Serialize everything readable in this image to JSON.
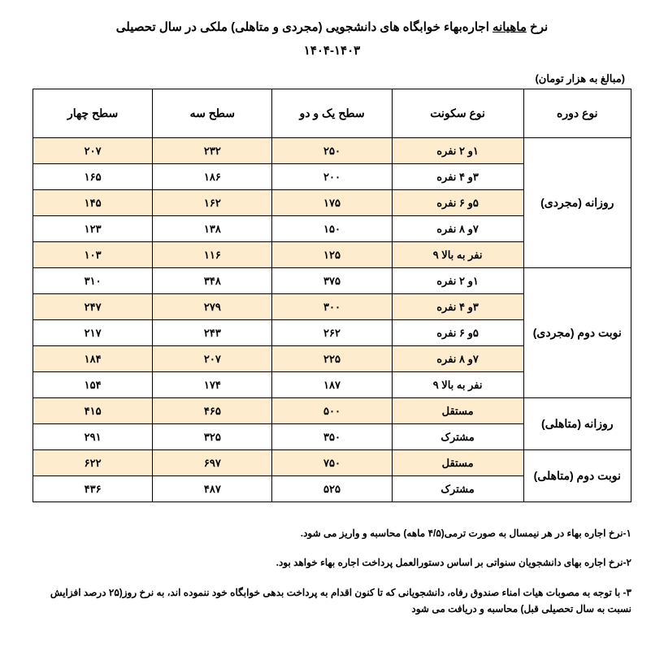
{
  "title_line1_pre": "نرخ ",
  "title_line1_u": "ماهیانه",
  "title_line1_post": " اجاره‌بهاء خوابگاه های دانشجویی (مجردی و متاهلی) ملکی در سال تحصیلی",
  "title_line2": "۱۴۰۴-۱۴۰۳",
  "unit_label": "(مبالغ به هزار تومان)",
  "headers": {
    "type": "نوع دوره",
    "occ": "نوع سکونت",
    "l12": "سطح یک و دو",
    "l3": "سطح سه",
    "l4": "سطح چهار"
  },
  "groups": [
    {
      "name": "روزانه (مجردی)",
      "rows": [
        {
          "occ": "۱و ۲ نفره",
          "l12": "۲۵۰",
          "l3": "۲۳۲",
          "l4": "۲۰۷",
          "hl": true
        },
        {
          "occ": "۳و ۴ نفره",
          "l12": "۲۰۰",
          "l3": "۱۸۶",
          "l4": "۱۶۵",
          "hl": false
        },
        {
          "occ": "۵و ۶ نفره",
          "l12": "۱۷۵",
          "l3": "۱۶۲",
          "l4": "۱۴۵",
          "hl": true
        },
        {
          "occ": "۷و ۸ نفره",
          "l12": "۱۵۰",
          "l3": "۱۳۸",
          "l4": "۱۲۳",
          "hl": false
        },
        {
          "occ": "نفر به بالا ۹",
          "l12": "۱۲۵",
          "l3": "۱۱۶",
          "l4": "۱۰۳",
          "hl": true
        }
      ]
    },
    {
      "name": "نوبت دوم (مجردی)",
      "rows": [
        {
          "occ": "۱و ۲ نفره",
          "l12": "۳۷۵",
          "l3": "۳۴۸",
          "l4": "۳۱۰",
          "hl": false
        },
        {
          "occ": "۳و ۴ نفره",
          "l12": "۳۰۰",
          "l3": "۲۷۹",
          "l4": "۲۴۷",
          "hl": true
        },
        {
          "occ": "۵و ۶ نفره",
          "l12": "۲۶۲",
          "l3": "۲۴۳",
          "l4": "۲۱۷",
          "hl": false
        },
        {
          "occ": "۷و ۸ نفره",
          "l12": "۲۲۵",
          "l3": "۲۰۷",
          "l4": "۱۸۴",
          "hl": true
        },
        {
          "occ": "نفر به بالا ۹",
          "l12": "۱۸۷",
          "l3": "۱۷۴",
          "l4": "۱۵۴",
          "hl": false
        }
      ]
    },
    {
      "name": "روزانه (متاهلی)",
      "rows": [
        {
          "occ": "مستقل",
          "l12": "۵۰۰",
          "l3": "۴۶۵",
          "l4": "۴۱۵",
          "hl": true
        },
        {
          "occ": "مشترک",
          "l12": "۳۵۰",
          "l3": "۳۲۵",
          "l4": "۲۹۱",
          "hl": false
        }
      ]
    },
    {
      "name": "نوبت دوم (متاهلی)",
      "rows": [
        {
          "occ": "مستقل",
          "l12": "۷۵۰",
          "l3": "۶۹۷",
          "l4": "۶۲۲",
          "hl": true
        },
        {
          "occ": "مشترک",
          "l12": "۵۲۵",
          "l3": "۴۸۷",
          "l4": "۴۳۶",
          "hl": false
        }
      ]
    }
  ],
  "notes": [
    "۱-نرخ اجاره بهاء در هر نیمسال به صورت ترمی(۴/۵ ماهه) محاسبه و واریز می شود.",
    "۲-نرخ اجاره بهای دانشجویان سنواتی بر اساس دستورالعمل پرداخت اجاره بهاء خواهد بود.",
    "۳- با توجه به مصوبات هیات امناء صندوق رفاه، دانشجویانی که تا کنون اقدام به پرداخت بدهی خوابگاه خود ننموده اند، به نرخ روز(۲۵ درصد افزایش نسبت به سال تحصیلی قبل) محاسبه و دریافت می شود"
  ]
}
